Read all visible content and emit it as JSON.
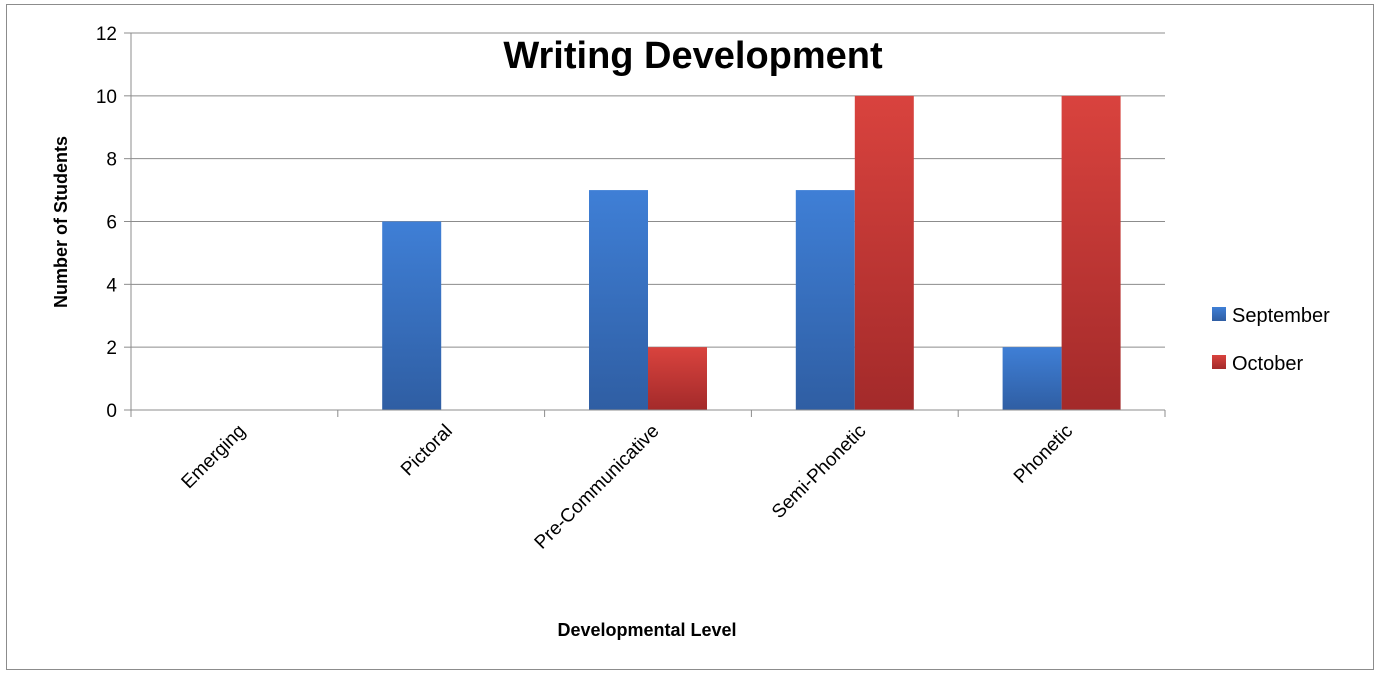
{
  "chart_data": {
    "type": "bar",
    "title": "Writing Development",
    "xlabel": "Developmental Level",
    "ylabel": "Number of Students",
    "categories": [
      "Emerging",
      "Pictoral",
      "Pre-Communicative",
      "Semi-Phonetic",
      "Phonetic"
    ],
    "series": [
      {
        "name": "September",
        "values": [
          0,
          6,
          7,
          7,
          2
        ],
        "color": "#3d74c4"
      },
      {
        "name": "October",
        "values": [
          0,
          0,
          2,
          10,
          10
        ],
        "color": "#c43636"
      }
    ],
    "ylim": [
      0,
      12
    ],
    "yticks": [
      "0",
      "2",
      "4",
      "6",
      "8",
      "10",
      "12"
    ],
    "grid": true,
    "legend_position": "right"
  }
}
